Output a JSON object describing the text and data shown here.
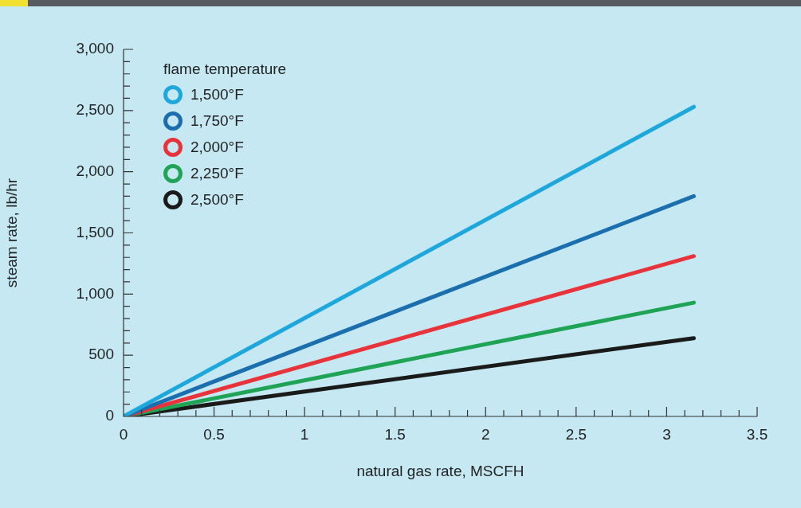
{
  "chart_data": {
    "type": "line",
    "xlabel": "natural gas rate, MSCFH",
    "ylabel": "steam rate, lb/hr",
    "legend_title": "flame temperature",
    "legend": "top left",
    "marker": "none",
    "line_style": "solid",
    "grid": false,
    "x": [
      0,
      3.15
    ],
    "series": [
      {
        "name": "1,500°F",
        "color": "#1ea7dc",
        "values": [
          0,
          2530
        ]
      },
      {
        "name": "1,750°F",
        "color": "#1b6fae",
        "values": [
          0,
          1800
        ]
      },
      {
        "name": "2,000°F",
        "color": "#e8333a",
        "values": [
          0,
          1310
        ]
      },
      {
        "name": "2,250°F",
        "color": "#1fa455",
        "values": [
          0,
          930
        ]
      },
      {
        "name": "2,500°F",
        "color": "#1a1a1a",
        "values": [
          0,
          640
        ]
      }
    ],
    "xlim": [
      0,
      3.5
    ],
    "ylim": [
      0,
      3000
    ],
    "xticks": [
      0,
      {
        "value": 0.1,
        "label": null
      },
      {
        "value": 0.2,
        "label": null
      },
      {
        "value": 0.3,
        "label": null
      },
      {
        "value": 0.4,
        "label": null
      },
      0.5,
      {
        "value": 0.6,
        "label": null
      },
      {
        "value": 0.7,
        "label": null
      },
      {
        "value": 0.8,
        "label": null
      },
      {
        "value": 0.9,
        "label": null
      },
      1,
      {
        "value": 1.1,
        "label": null
      },
      {
        "value": 1.2,
        "label": null
      },
      {
        "value": 1.3,
        "label": null
      },
      {
        "value": 1.4,
        "label": null
      },
      1.5,
      {
        "value": 1.6,
        "label": null
      },
      {
        "value": 1.7,
        "label": null
      },
      {
        "value": 1.8,
        "label": null
      },
      {
        "value": 1.9,
        "label": null
      },
      2,
      {
        "value": 2.1,
        "label": null
      },
      {
        "value": 2.2,
        "label": null
      },
      {
        "value": 2.3,
        "label": null
      },
      {
        "value": 2.4,
        "label": null
      },
      2.5,
      {
        "value": 2.6,
        "label": null
      },
      {
        "value": 2.7,
        "label": null
      },
      {
        "value": 2.8,
        "label": null
      },
      {
        "value": 2.9,
        "label": null
      },
      3,
      {
        "value": 3.1,
        "label": null
      },
      {
        "value": 3.2,
        "label": null
      },
      {
        "value": 3.3,
        "label": null
      },
      {
        "value": 3.4,
        "label": null
      },
      3.5
    ],
    "yticks": [
      {
        "value": 0,
        "label": "0"
      },
      {
        "value": 100,
        "label": null
      },
      {
        "value": 200,
        "label": null
      },
      {
        "value": 300,
        "label": null
      },
      {
        "value": 400,
        "label": null
      },
      {
        "value": 500,
        "label": "500"
      },
      {
        "value": 600,
        "label": null
      },
      {
        "value": 700,
        "label": null
      },
      {
        "value": 800,
        "label": null
      },
      {
        "value": 900,
        "label": null
      },
      {
        "value": 1000,
        "label": "1,000"
      },
      {
        "value": 1100,
        "label": null
      },
      {
        "value": 1200,
        "label": null
      },
      {
        "value": 1300,
        "label": null
      },
      {
        "value": 1400,
        "label": null
      },
      {
        "value": 1500,
        "label": "1,500"
      },
      {
        "value": 1600,
        "label": null
      },
      {
        "value": 1700,
        "label": null
      },
      {
        "value": 1800,
        "label": null
      },
      {
        "value": 1900,
        "label": null
      },
      {
        "value": 2000,
        "label": "2,000"
      },
      {
        "value": 2100,
        "label": null
      },
      {
        "value": 2200,
        "label": null
      },
      {
        "value": 2300,
        "label": null
      },
      {
        "value": 2400,
        "label": null
      },
      {
        "value": 2500,
        "label": "2,500"
      },
      {
        "value": 2600,
        "label": null
      },
      {
        "value": 2700,
        "label": null
      },
      {
        "value": 2800,
        "label": null
      },
      {
        "value": 2900,
        "label": null
      },
      {
        "value": 3000,
        "label": "3,000"
      }
    ]
  }
}
